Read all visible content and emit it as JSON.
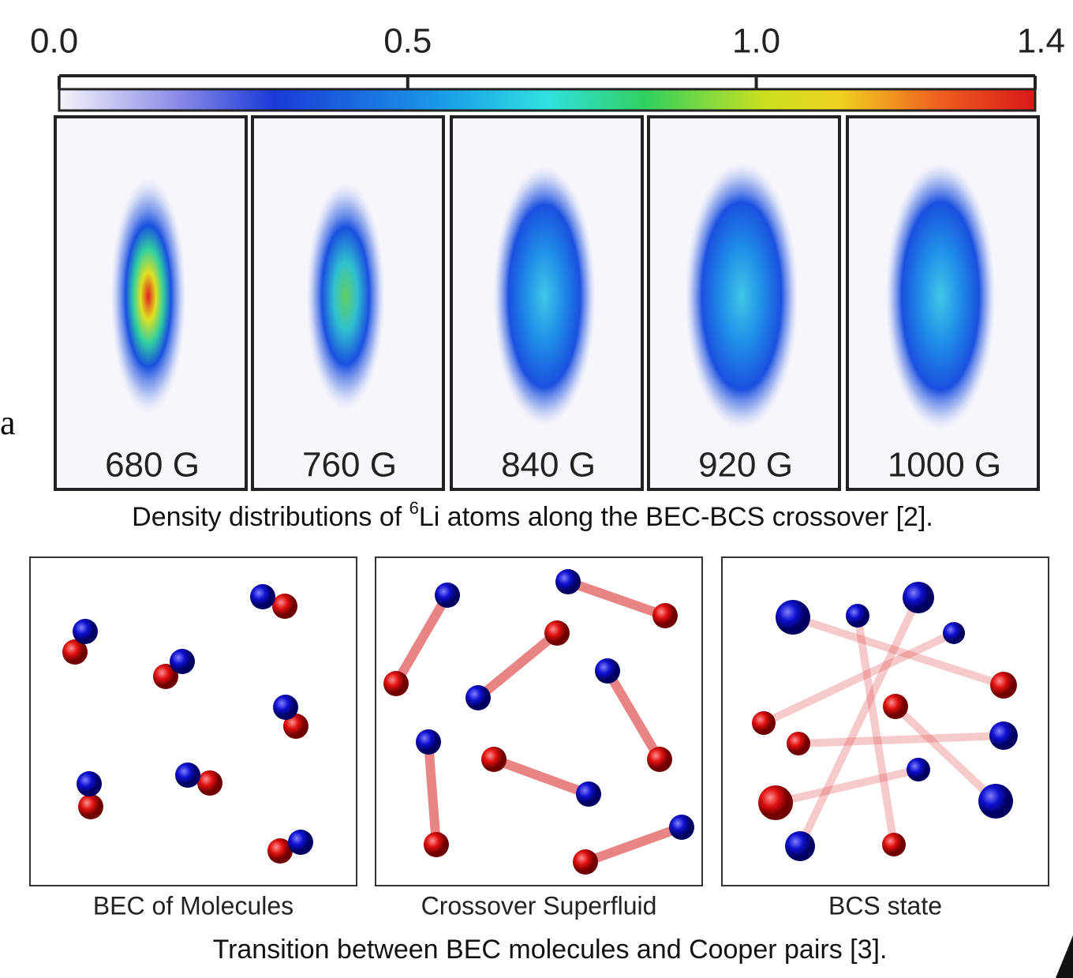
{
  "colorbar": {
    "ticks": [
      {
        "value": 0,
        "label": "0.0"
      },
      {
        "value": 0.5,
        "label": "0.5"
      },
      {
        "value": 1.0,
        "label": "1.0"
      },
      {
        "value": 1.4,
        "label": "1.4"
      }
    ]
  },
  "panels": [
    "680 G",
    "760 G",
    "840 G",
    "920 G",
    "1000 G"
  ],
  "caption_top": {
    "before": "Density distributions of ",
    "sup": "6",
    "after": "Li atoms along the BEC-BCS crossover [2]."
  },
  "diagrams": [
    "BEC of Molecules",
    "Crossover Superfluid",
    "BCS state"
  ],
  "caption_bottom": "Transition between BEC molecules and Cooper pairs [3].",
  "edge_fragment": "a"
}
